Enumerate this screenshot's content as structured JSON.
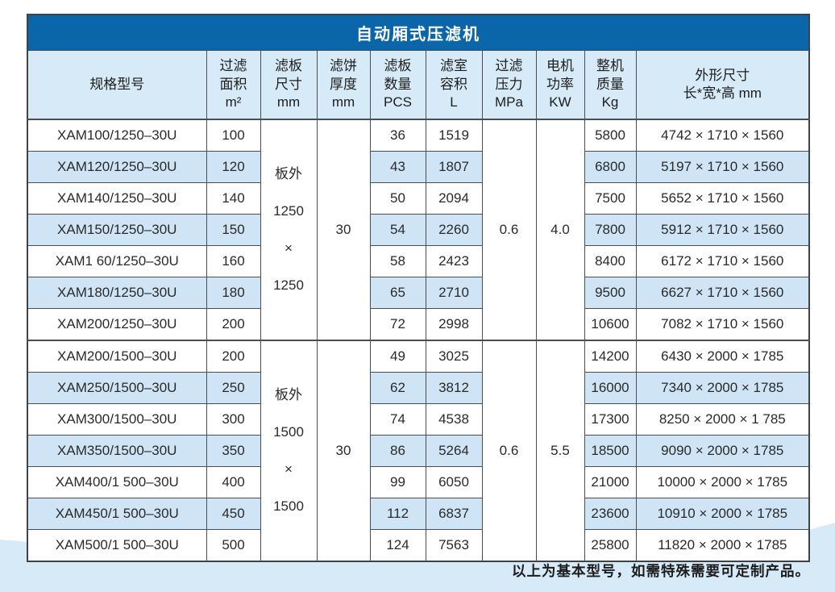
{
  "title": "自动厢式压滤机",
  "footer": "以上为基本型号，如需特殊需要可定制产品。",
  "columns": [
    {
      "id": "model",
      "lines": [
        "规格型号"
      ]
    },
    {
      "id": "area",
      "lines": [
        "过滤",
        "面积",
        "m²"
      ]
    },
    {
      "id": "plate-size",
      "lines": [
        "滤板",
        "尺寸",
        "mm"
      ]
    },
    {
      "id": "cake-thickness",
      "lines": [
        "滤饼",
        "厚度",
        "mm"
      ]
    },
    {
      "id": "plate-qty",
      "lines": [
        "滤板",
        "数量",
        "PCS"
      ]
    },
    {
      "id": "chamber-volume",
      "lines": [
        "滤室",
        "容积",
        "L"
      ]
    },
    {
      "id": "filter-pressure",
      "lines": [
        "过滤",
        "压力",
        "MPa"
      ]
    },
    {
      "id": "motor-power",
      "lines": [
        "电机",
        "功率",
        "KW"
      ]
    },
    {
      "id": "machine-weight",
      "lines": [
        "整机",
        "质量",
        "Kg"
      ]
    },
    {
      "id": "dimensions",
      "lines": [
        "外形尺寸",
        "长*宽*高 mm"
      ]
    }
  ],
  "groups": [
    {
      "plate_size_lines": [
        "板外",
        "1250",
        "×",
        "1250"
      ],
      "cake_thickness": "30",
      "pressure": "0.6",
      "power": "4.0",
      "rows": [
        [
          "XAM100/1250–30U",
          "100",
          "36",
          "1519",
          "5800",
          "4742 × 1710 × 1560"
        ],
        [
          "XAM120/1250–30U",
          "120",
          "43",
          "1807",
          "6800",
          "5197  × 1710 × 1560"
        ],
        [
          "XAM140/1250–30U",
          "140",
          "50",
          "2094",
          "7500",
          "5652 × 1710 × 1560"
        ],
        [
          "XAM150/1250–30U",
          "150",
          "54",
          "2260",
          "7800",
          "5912 × 1710 × 1560"
        ],
        [
          "XAM1 60/1250–30U",
          "160",
          "58",
          "2423",
          "8400",
          "6172 × 1710 × 1560"
        ],
        [
          "XAM180/1250–30U",
          "180",
          "65",
          "2710",
          "9500",
          "6627 × 1710 × 1560"
        ],
        [
          "XAM200/1250–30U",
          "200",
          "72",
          "2998",
          "10600",
          "7082 × 1710 × 1560"
        ]
      ]
    },
    {
      "plate_size_lines": [
        "板外",
        "1500",
        "×",
        "1500"
      ],
      "cake_thickness": "30",
      "pressure": "0.6",
      "power": "5.5",
      "rows": [
        [
          "XAM200/1500–30U",
          "200",
          "49",
          "3025",
          "14200",
          "6430 × 2000 × 1785"
        ],
        [
          "XAM250/1500–30U",
          "250",
          "62",
          "3812",
          "16000",
          "7340 × 2000 × 1785"
        ],
        [
          "XAM300/1500–30U",
          "300",
          "74",
          "4538",
          "17300",
          "8250 ×  2000 × 1 785"
        ],
        [
          "XAM350/1500–30U",
          "350",
          "86",
          "5264",
          "18500",
          "9090 × 2000 ×  1785"
        ],
        [
          "XAM400/1 500–30U",
          "400",
          "99",
          "6050",
          "21000",
          "10000 × 2000 × 1785"
        ],
        [
          "XAM450/1 500–30U",
          "450",
          "112",
          "6837",
          "23600",
          "10910 × 2000 × 1785"
        ],
        [
          "XAM500/1 500–30U",
          "500",
          "124",
          "7563",
          "25800",
          "11820 × 2000 × 1785"
        ]
      ]
    }
  ],
  "colors": {
    "title_bar": "#0b66a9",
    "header_bg": "#d7eaf7",
    "stripe_bg": "#cfe5f5",
    "band_bg": "#d6eaf8",
    "border": "#4a4e52"
  }
}
